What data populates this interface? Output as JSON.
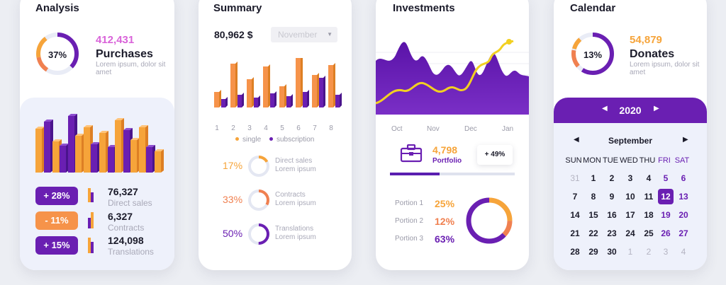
{
  "colors": {
    "purple": "#6a1fb2",
    "orange": "#f6a43a",
    "coral": "#f08050",
    "pink": "#d963d9"
  },
  "analysis": {
    "title": "Analysis",
    "donut_percent": "37%",
    "value": "412,431",
    "label": "Purchases",
    "desc": "Lorem ipsum, dolor sit amet",
    "stats": [
      {
        "badge": "+ 28%",
        "value": "76,327",
        "label": "Direct sales",
        "color": "#6a1fb2"
      },
      {
        "badge": "- 11%",
        "value": "6,327",
        "label": "Contracts",
        "color": "#f08050"
      },
      {
        "badge": "+ 15%",
        "value": "124,098",
        "label": "Translations",
        "color": "#6a1fb2"
      }
    ]
  },
  "summary": {
    "title": "Summary",
    "value": "80,962 $",
    "month": "November",
    "x_labels": [
      "1",
      "2",
      "3",
      "4",
      "5",
      "6",
      "7",
      "8"
    ],
    "legend_single": "single",
    "legend_subscription": "subscription",
    "rings": [
      {
        "percent": "17%",
        "label1": "Direct sales",
        "label2": "Lorem ipsum",
        "fraction": 0.17,
        "color": "#f6a43a"
      },
      {
        "percent": "33%",
        "label1": "Contracts",
        "label2": "Lorem ipsum",
        "fraction": 0.33,
        "color": "#f08050"
      },
      {
        "percent": "50%",
        "label1": "Translations",
        "label2": "Lorem ipsum",
        "fraction": 0.5,
        "color": "#6a1fb2"
      }
    ]
  },
  "investments": {
    "title": "Investments",
    "months": [
      "Oct",
      "Nov",
      "Dec",
      "Jan"
    ],
    "portfolio_value": "4,798",
    "portfolio_label": "Portfolio",
    "portfolio_change": "+ 49%",
    "progress": 0.4,
    "portions": [
      {
        "label": "Portion 1",
        "value": "25%",
        "color": "#f6a43a"
      },
      {
        "label": "Portion 2",
        "value": "12%",
        "color": "#f08050"
      },
      {
        "label": "Portion 3",
        "value": "63%",
        "color": "#6a1fb2"
      }
    ]
  },
  "calendar": {
    "title": "Calendar",
    "donut_percent": "13%",
    "value": "54,879",
    "label": "Donates",
    "desc": "Lorem ipsum, dolor sit amet",
    "year": "2020",
    "month": "September",
    "weekdays": [
      "SUN",
      "MON",
      "TUE",
      "WED",
      "THU",
      "FRI",
      "SAT"
    ],
    "weeks": [
      [
        "31",
        "1",
        "2",
        "3",
        "4",
        "5",
        "6"
      ],
      [
        "7",
        "8",
        "9",
        "10",
        "11",
        "12",
        "13"
      ],
      [
        "14",
        "15",
        "16",
        "17",
        "18",
        "19",
        "20"
      ],
      [
        "21",
        "22",
        "23",
        "24",
        "25",
        "26",
        "27"
      ],
      [
        "28",
        "29",
        "30",
        "1",
        "2",
        "3",
        "4"
      ]
    ]
  }
}
